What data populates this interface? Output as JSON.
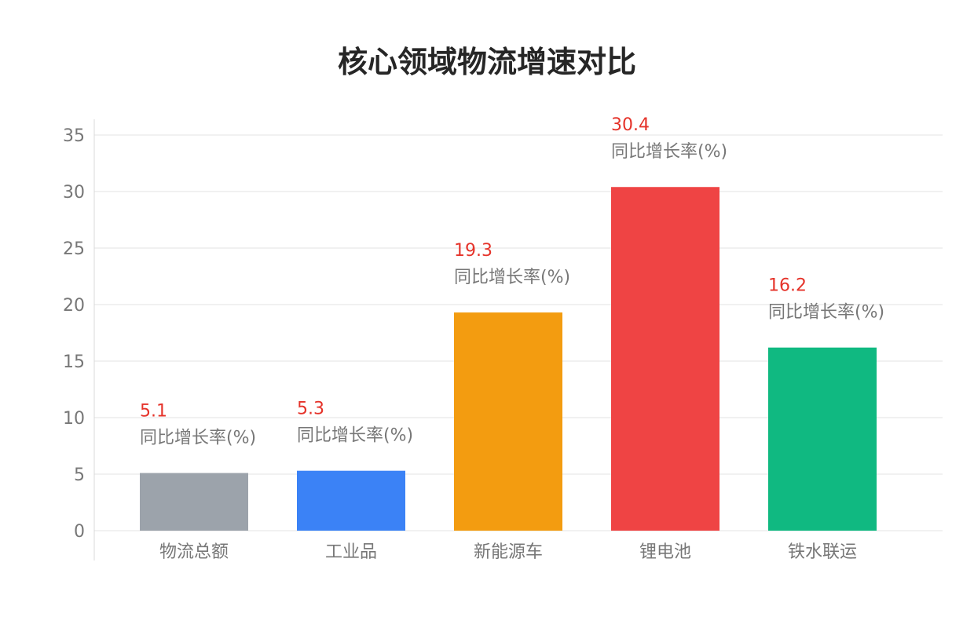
{
  "colors": {
    "axis_text": "#777777",
    "grid": "#e3e3e3",
    "value_label": "#e5332a",
    "note_label": "#777777"
  },
  "chart_data": {
    "type": "bar",
    "title": "核心领域物流增速对比",
    "xlabel": "",
    "ylabel": "",
    "ylim": [
      0,
      35
    ],
    "yticks": [
      0,
      5,
      10,
      15,
      20,
      25,
      30,
      35
    ],
    "grid": true,
    "categories": [
      "物流总额",
      "工业品",
      "新能源车",
      "锂电池",
      "铁水联运"
    ],
    "values": [
      5.1,
      5.3,
      19.3,
      30.4,
      16.2
    ],
    "value_labels": [
      "5.1",
      "5.3",
      "19.3",
      "30.4",
      "16.2"
    ],
    "bar_note": "同比增长率(%)",
    "bar_colors": [
      "#9ca3ab",
      "#3b82f6",
      "#f39c10",
      "#ef4444",
      "#10b981"
    ]
  }
}
